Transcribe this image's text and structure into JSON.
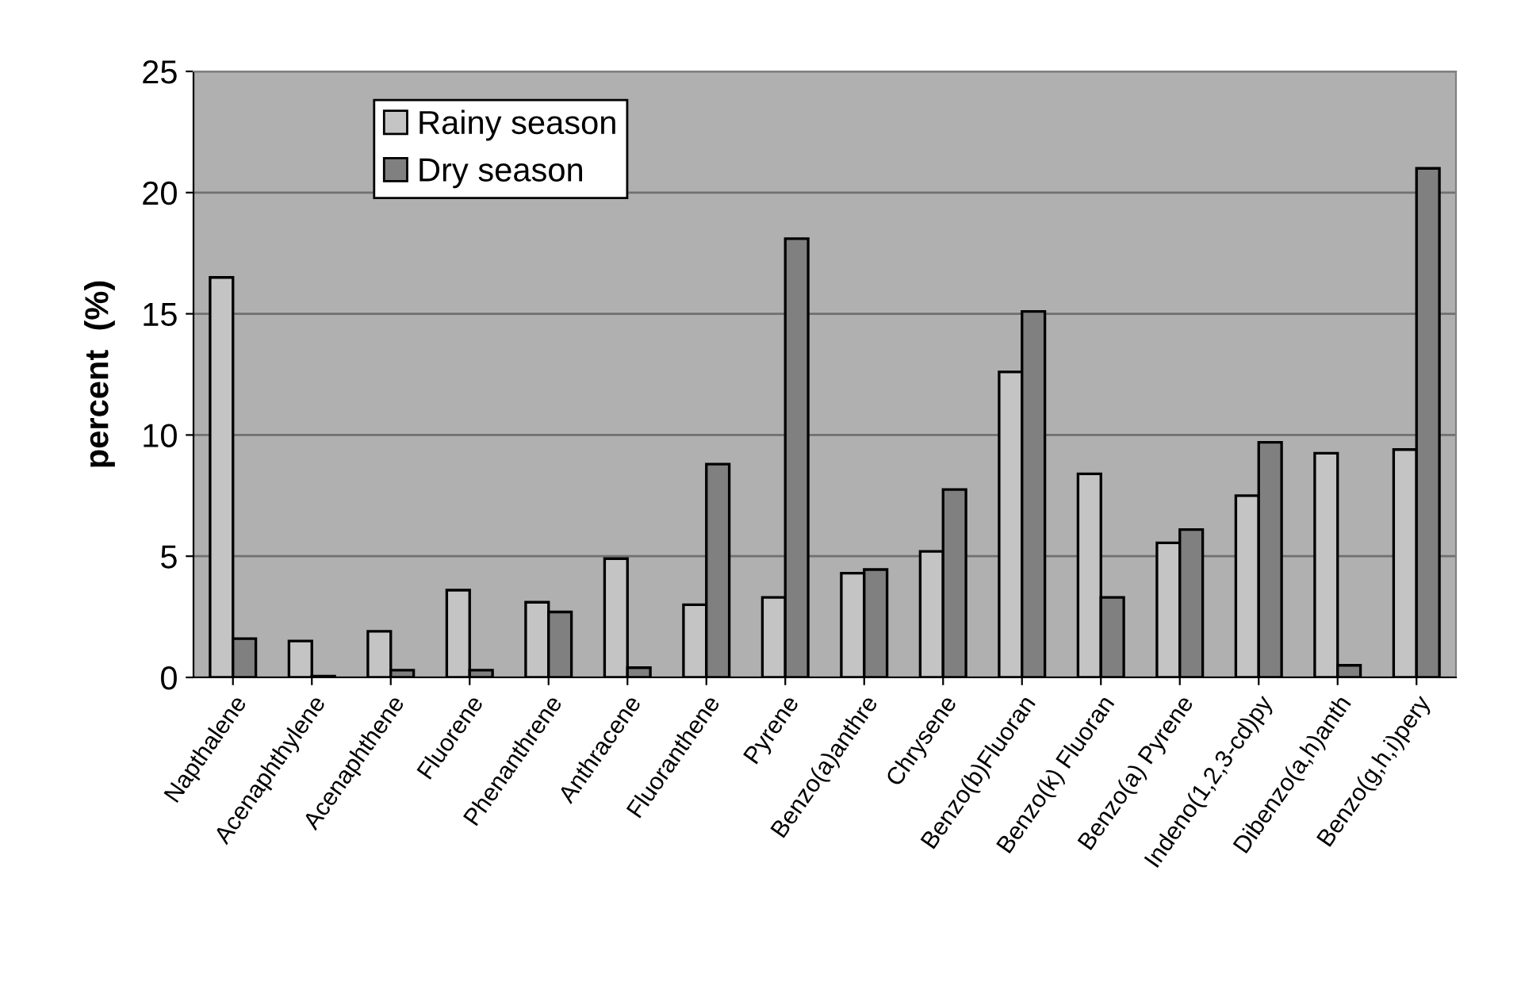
{
  "chart_data": {
    "type": "bar",
    "ylabel": "percent  (%)",
    "categories": [
      "Napthalene",
      "Acenaphthylene",
      "Acenaphthene",
      "Fluorene",
      "Phenanthrene",
      "Anthracene",
      "Fluoranthene",
      "Pyrene",
      "Benzo(a)anthre",
      "Chrysene",
      "Benzo(b)Fluoran",
      "Benzo(k) Fluoran",
      "Benzo(a) Pyrene",
      "Indeno(1,2,3-cd)py",
      "Dibenzo(a,h)anth",
      "Benzo(g,h,i)pery"
    ],
    "series": [
      {
        "name": "Rainy season",
        "color": "#c4c4c4",
        "values": [
          16.5,
          1.5,
          1.9,
          3.6,
          3.1,
          4.9,
          3.0,
          3.3,
          4.3,
          5.2,
          12.6,
          8.4,
          5.55,
          7.5,
          9.25,
          9.4
        ]
      },
      {
        "name": "Dry season",
        "color": "#808080",
        "values": [
          1.6,
          0.05,
          0.3,
          0.3,
          2.7,
          0.4,
          8.8,
          18.1,
          4.45,
          7.75,
          15.1,
          3.3,
          6.1,
          9.7,
          0.5,
          21.0
        ]
      }
    ],
    "ylim": [
      0,
      25
    ],
    "yticks": [
      0,
      5,
      10,
      15,
      20,
      25
    ],
    "grid": "y",
    "legend": "top left"
  }
}
